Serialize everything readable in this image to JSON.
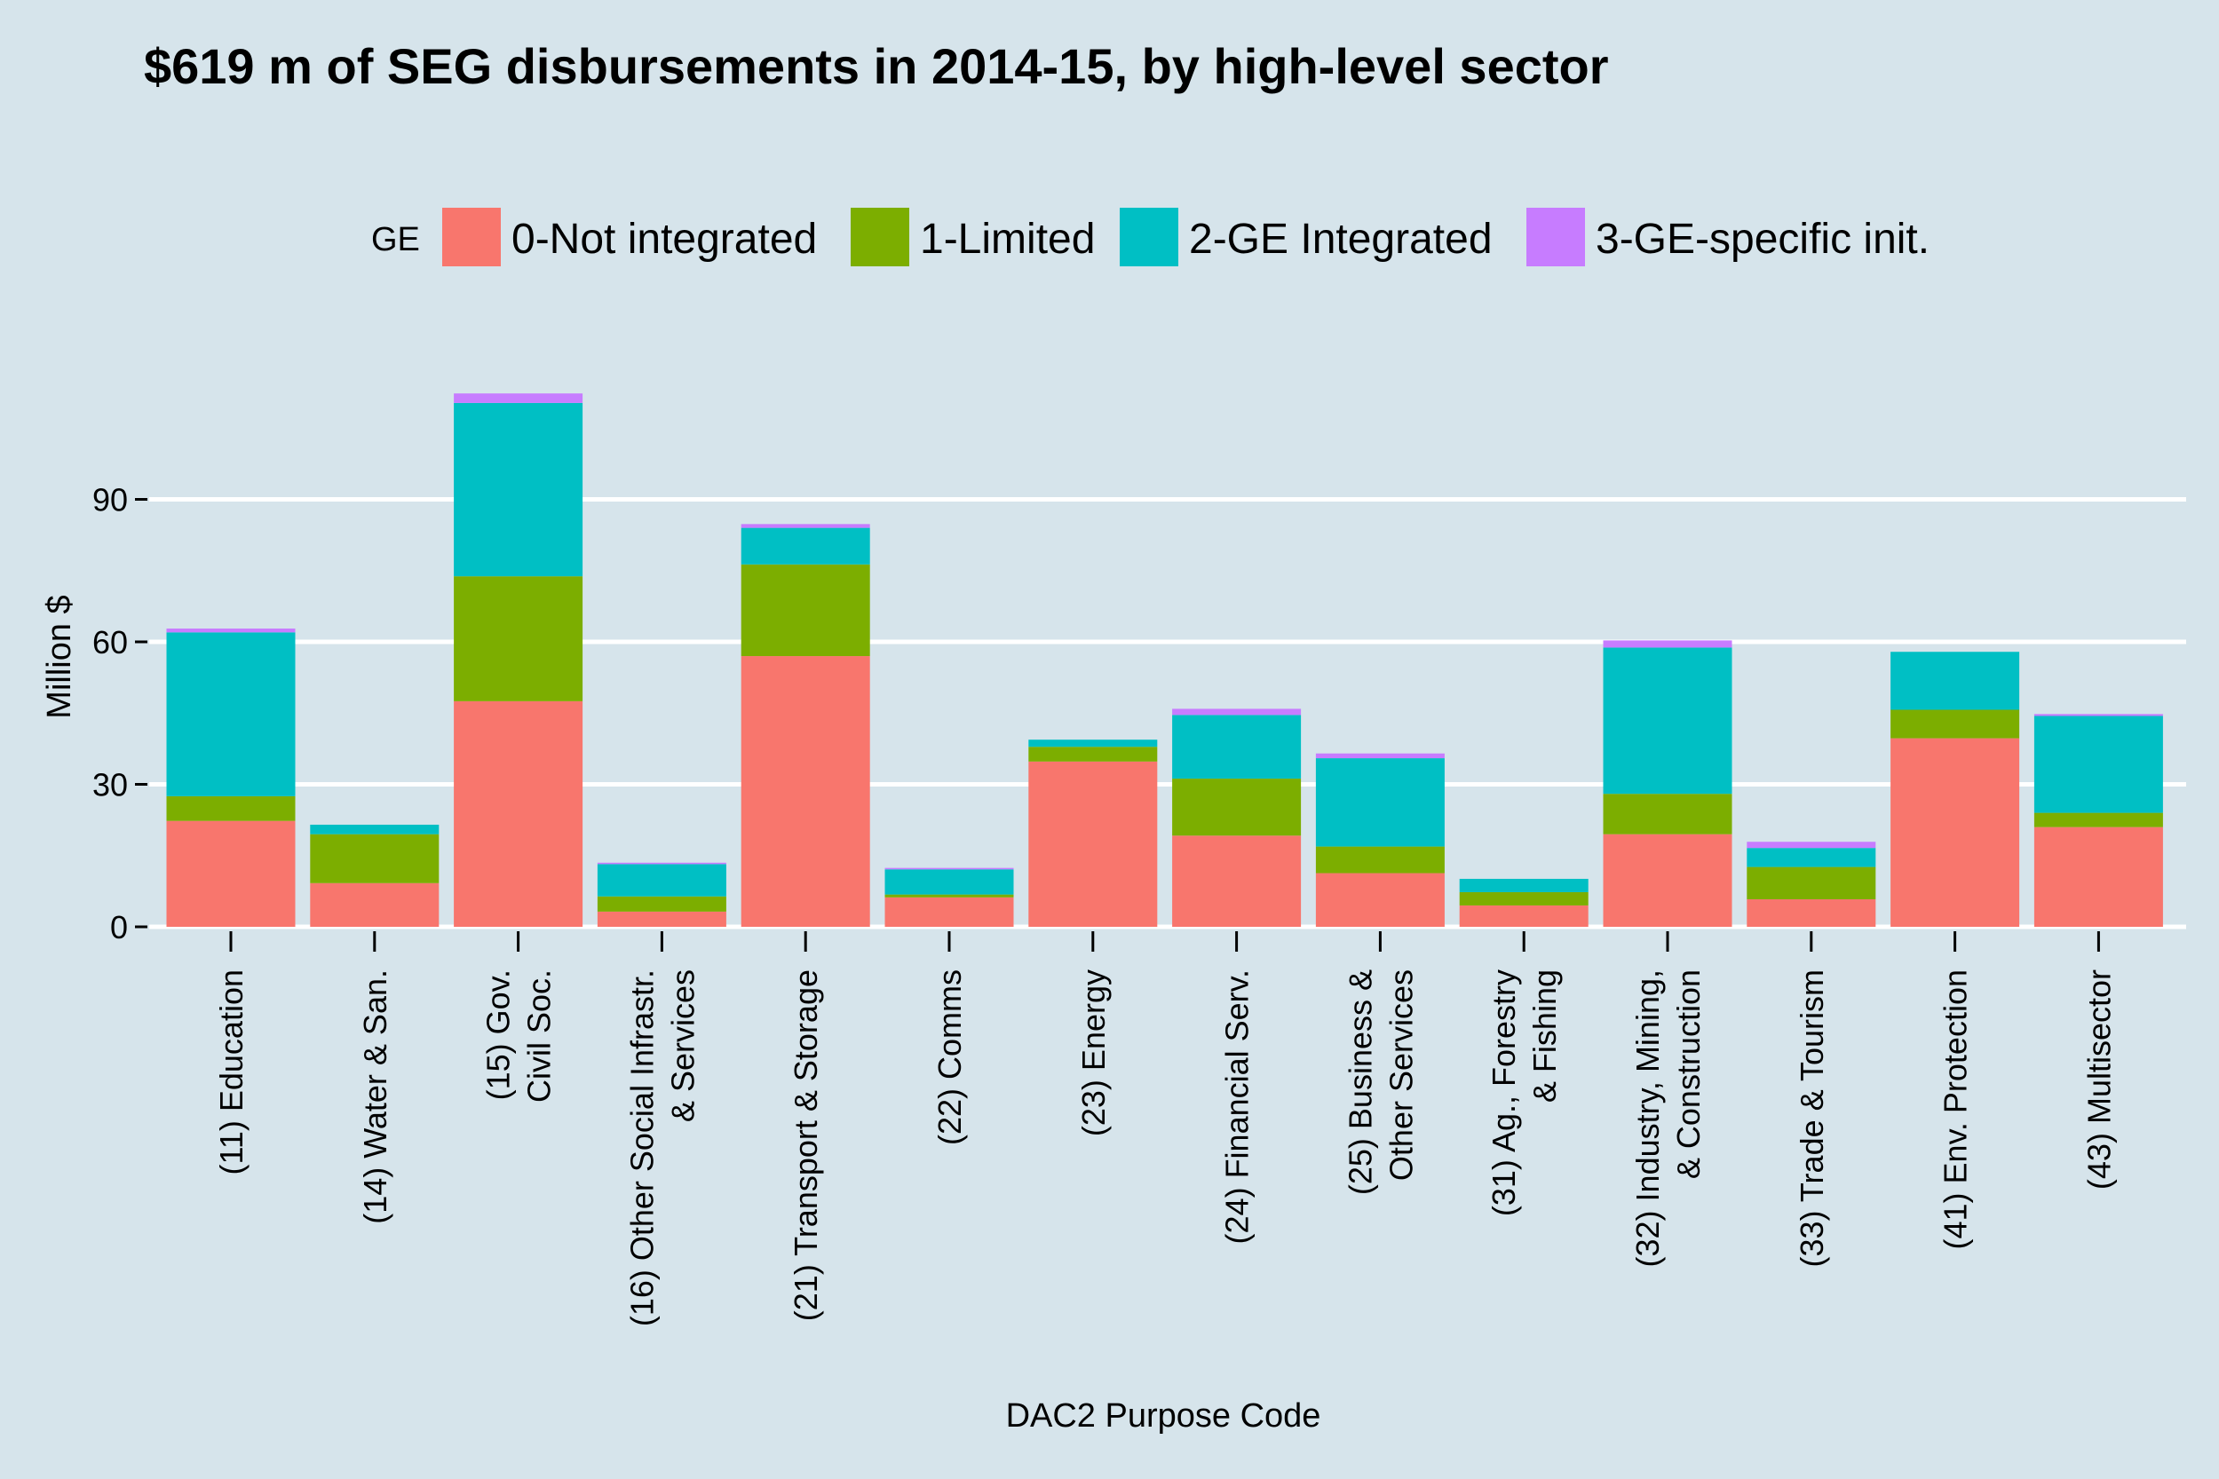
{
  "chart_data": {
    "type": "bar",
    "stacked": true,
    "title": "$619 m of SEG disbursements in 2014-15, by high-level sector",
    "xlabel": "DAC2 Purpose Code",
    "ylabel": "Million $",
    "ylim": [
      0,
      112
    ],
    "yticks": [
      0,
      30,
      60,
      90
    ],
    "grid": true,
    "legend_title": "GE",
    "legend_position": "top",
    "categories": [
      [
        "(11) Education"
      ],
      [
        "(14) Water & San."
      ],
      [
        "(15) Gov.",
        "Civil Soc."
      ],
      [
        "(16) Other Social Infrastr.",
        "& Services"
      ],
      [
        "(21) Transport & Storage"
      ],
      [
        "(22) Comms"
      ],
      [
        "(23) Energy"
      ],
      [
        "(24) Financial Serv."
      ],
      [
        "(25) Business &",
        "Other Services"
      ],
      [
        "(31) Ag., Forestry",
        "& Fishing"
      ],
      [
        "(32) Industry, Mining,",
        "& Construction"
      ],
      [
        "(33) Trade & Tourism"
      ],
      [
        "(41) Env. Protection"
      ],
      [
        "(43) Multisector"
      ]
    ],
    "series": [
      {
        "name": "0-Not integrated",
        "color": "#f8766d",
        "values": [
          22.3,
          9.2,
          47.5,
          3.2,
          57.0,
          6.2,
          34.8,
          19.2,
          11.3,
          4.5,
          19.5,
          5.8,
          39.7,
          21.0
        ]
      },
      {
        "name": "1-Limited",
        "color": "#7cae00",
        "values": [
          5.2,
          10.3,
          26.3,
          3.2,
          19.3,
          0.6,
          3.1,
          12.0,
          5.6,
          2.8,
          8.5,
          6.8,
          6.0,
          3.0
        ]
      },
      {
        "name": "2-GE Integrated",
        "color": "#00bfc4",
        "values": [
          34.5,
          2.0,
          36.5,
          6.8,
          7.7,
          5.3,
          1.5,
          13.4,
          18.6,
          2.8,
          30.8,
          4.0,
          12.2,
          20.4
        ]
      },
      {
        "name": "3-GE-specific init.",
        "color": "#c77cff",
        "values": [
          0.8,
          0.0,
          2.0,
          0.3,
          0.8,
          0.3,
          0.0,
          1.3,
          1.0,
          0.0,
          1.5,
          1.3,
          0.0,
          0.4
        ]
      }
    ]
  }
}
